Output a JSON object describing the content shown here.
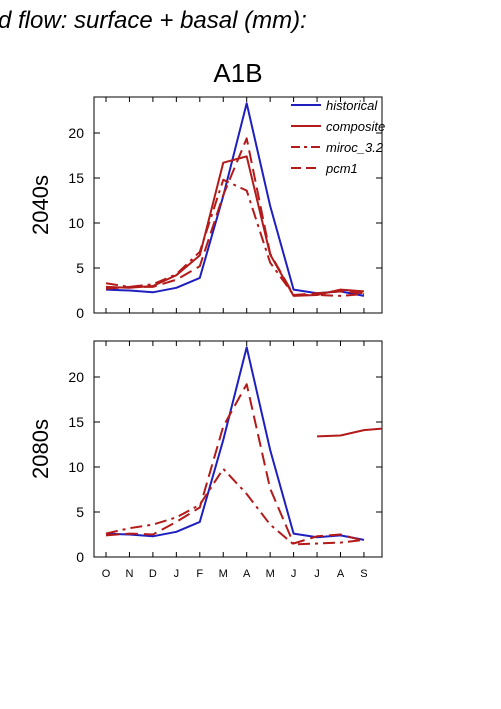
{
  "header": {
    "title": "d flow: surface + basal (mm):",
    "scenario": "A1B"
  },
  "colors": {
    "historical": "#1f1fbf",
    "composite": "#b31a1a",
    "miroc_3.2": "#b31a1a",
    "pcm1": "#b31a1a",
    "axis": "#000000"
  },
  "chart_data": [
    {
      "type": "line",
      "panel": "2040s",
      "title": "A1B",
      "ylabel": "2040s",
      "xlabel": "",
      "ylim": [
        0,
        24
      ],
      "yticks": [
        0,
        5,
        10,
        15,
        20
      ],
      "categories": [
        "O",
        "N",
        "D",
        "J",
        "F",
        "M",
        "A",
        "M",
        "J",
        "J",
        "A",
        "S"
      ],
      "grid": false,
      "legend_position": "top-right",
      "series": [
        {
          "name": "historical",
          "style": "solid",
          "color": "#1f1fbf",
          "values": [
            2.6,
            2.5,
            2.3,
            2.8,
            3.9,
            13.0,
            23.3,
            11.9,
            2.6,
            2.2,
            2.4,
            1.9
          ]
        },
        {
          "name": "composite",
          "style": "solid",
          "color": "#b31a1a",
          "values": [
            2.9,
            2.8,
            3.0,
            4.2,
            6.4,
            16.7,
            17.4,
            6.5,
            1.9,
            2.0,
            2.6,
            2.4
          ]
        },
        {
          "name": "miroc_3.2",
          "style": "dashdot",
          "color": "#b31a1a",
          "values": [
            3.3,
            2.9,
            3.2,
            4.3,
            6.8,
            14.8,
            13.6,
            5.6,
            2.0,
            2.0,
            1.9,
            2.1
          ]
        },
        {
          "name": "pcm1",
          "style": "dashed",
          "color": "#b31a1a",
          "values": [
            2.7,
            2.9,
            2.9,
            3.7,
            5.2,
            13.1,
            19.4,
            6.6,
            2.0,
            2.2,
            2.4,
            2.2
          ]
        }
      ]
    },
    {
      "type": "line",
      "panel": "2080s",
      "ylabel": "2080s",
      "xlabel": "",
      "ylim": [
        0,
        24
      ],
      "yticks": [
        0,
        5,
        10,
        15,
        20
      ],
      "categories": [
        "O",
        "N",
        "D",
        "J",
        "F",
        "M",
        "A",
        "M",
        "J",
        "J",
        "A",
        "S"
      ],
      "grid": false,
      "series": [
        {
          "name": "historical",
          "style": "solid",
          "color": "#1f1fbf",
          "values": [
            2.6,
            2.5,
            2.3,
            2.8,
            3.9,
            13.0,
            23.3,
            11.9,
            2.6,
            2.2,
            2.4,
            1.9
          ]
        },
        {
          "name": "composite",
          "style": "solid",
          "color": "#b31a1a",
          "values": [
            null,
            null,
            null,
            null,
            null,
            null,
            null,
            null,
            null,
            13.4,
            13.5,
            14.1
          ]
        },
        {
          "name": "miroc_3.2",
          "style": "dashdot",
          "color": "#b31a1a",
          "values": [
            2.6,
            3.2,
            3.6,
            4.4,
            5.8,
            9.8,
            7.0,
            3.6,
            1.4,
            1.5,
            1.6,
            1.9
          ]
        },
        {
          "name": "pcm1",
          "style": "dashed",
          "color": "#b31a1a",
          "values": [
            2.4,
            2.6,
            2.5,
            3.9,
            5.5,
            14.5,
            19.2,
            7.6,
            1.5,
            2.3,
            2.5,
            1.8
          ]
        }
      ]
    }
  ]
}
